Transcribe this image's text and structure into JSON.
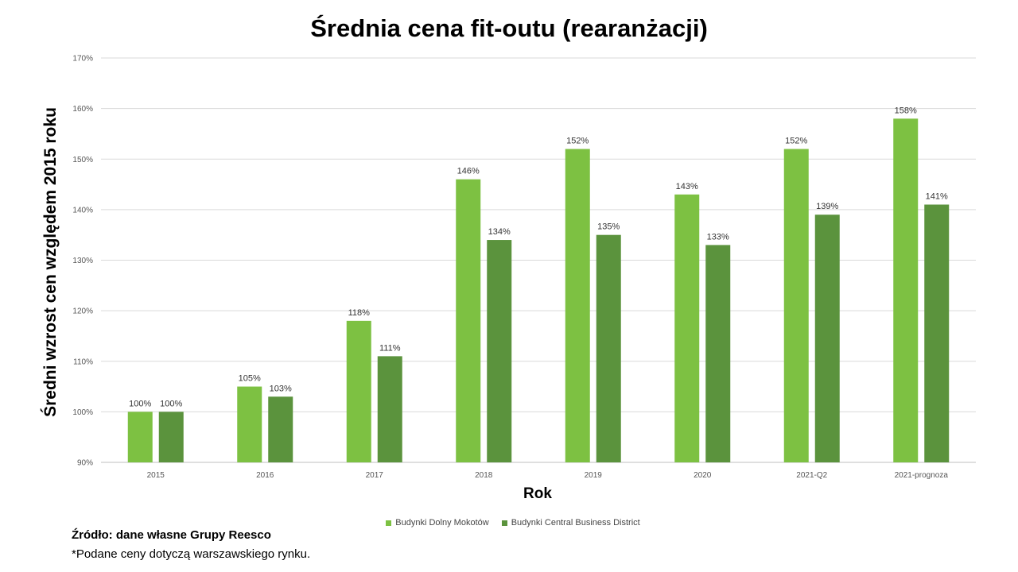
{
  "chart_data": {
    "type": "bar",
    "title": "Średnia cena fit-outu (rearanżacji)",
    "xlabel": "Rok",
    "ylabel": "Średni wzrost cen względem 2015 roku",
    "categories": [
      "2015",
      "2016",
      "2017",
      "2018",
      "2019",
      "2020",
      "2021-Q2",
      "2021-prognoza"
    ],
    "series": [
      {
        "name": "Budynki Dolny Mokotów",
        "color": "#7dc142",
        "values": [
          100,
          105,
          118,
          146,
          152,
          143,
          152,
          158
        ],
        "labels": [
          "100%",
          "105%",
          "118%",
          "146%",
          "152%",
          "143%",
          "152%",
          "158%"
        ]
      },
      {
        "name": "Budynki Central Business District",
        "color": "#5b933d",
        "values": [
          100,
          103,
          111,
          134,
          135,
          133,
          139,
          141
        ],
        "labels": [
          "100%",
          "103%",
          "111%",
          "134%",
          "135%",
          "133%",
          "139%",
          "141%"
        ]
      }
    ],
    "ylim": [
      90,
      170
    ],
    "yticks": [
      90,
      100,
      110,
      120,
      130,
      140,
      150,
      160,
      170
    ],
    "ytick_labels": [
      "90%",
      "100%",
      "110%",
      "120%",
      "130%",
      "140%",
      "150%",
      "160%",
      "170%"
    ],
    "grid": true,
    "legend_position": "bottom"
  },
  "footer": {
    "source": "Źródło: dane własne Grupy Reesco",
    "note": "*Podane ceny dotyczą warszawskiego rynku."
  }
}
